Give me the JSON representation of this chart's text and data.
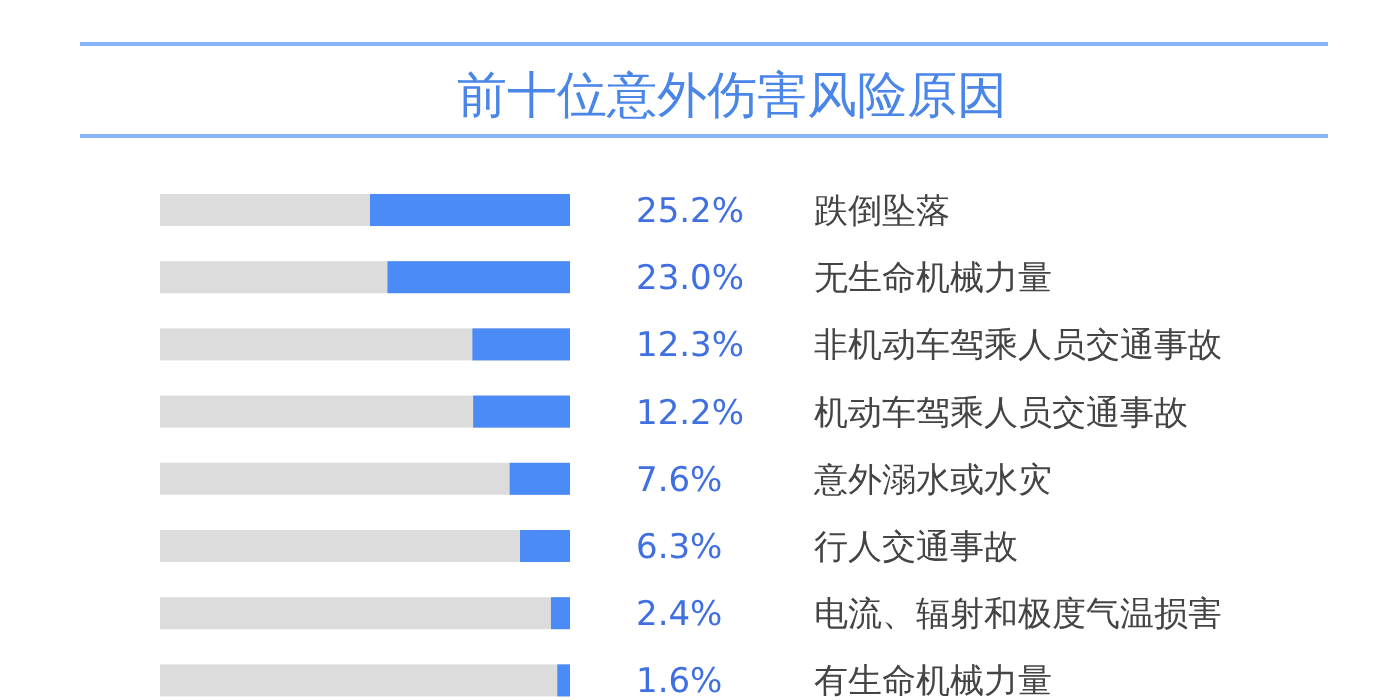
{
  "chart_data": {
    "type": "bar",
    "orientation": "horizontal",
    "title": "前十位意外伤害风险原因",
    "categories": [
      "跌倒坠落",
      "无生命机械力量",
      "非机动车驾乘人员交通事故",
      "机动车驾乘人员交通事故",
      "意外溺水或水灾",
      "行人交通事故",
      "电流、辐射和极度气温损害",
      "有生命机械力量"
    ],
    "values": [
      25.2,
      23.0,
      12.3,
      12.2,
      7.6,
      6.3,
      2.4,
      1.6
    ],
    "value_labels": [
      "25.2%",
      "23.0%",
      "12.3%",
      "12.2%",
      "7.6%",
      "6.3%",
      "2.4%",
      "1.6%"
    ],
    "color": "#4b8bf5"
  }
}
